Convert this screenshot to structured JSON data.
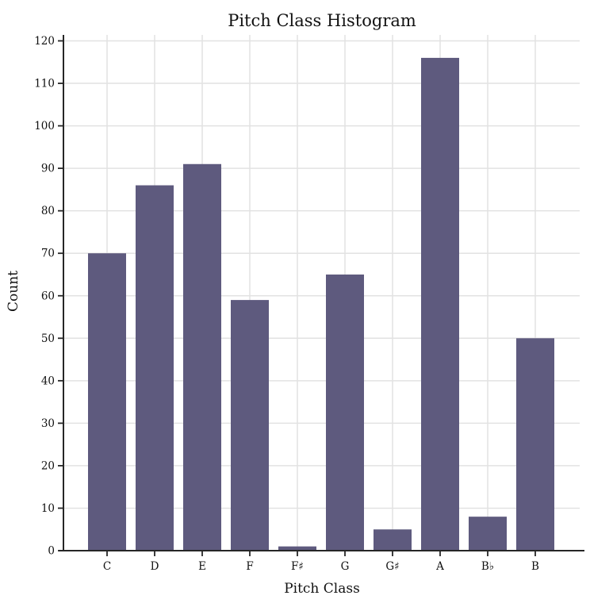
{
  "chart_data": {
    "type": "bar",
    "title": "Pitch Class Histogram",
    "xlabel": "Pitch Class",
    "ylabel": "Count",
    "categories": [
      "C",
      "D",
      "E",
      "F",
      "F♯",
      "G",
      "G♯",
      "A",
      "B♭",
      "B"
    ],
    "values": [
      70,
      86,
      91,
      59,
      1,
      65,
      5,
      116,
      8,
      50
    ],
    "ylim": [
      0,
      120
    ],
    "ytick_step": 10,
    "grid": true,
    "legend": "none",
    "colors": {
      "bar": "#5e5a7e",
      "grid": "#e2e2e2",
      "axis": "#262626",
      "text": "#111111",
      "background": "#ffffff"
    }
  }
}
